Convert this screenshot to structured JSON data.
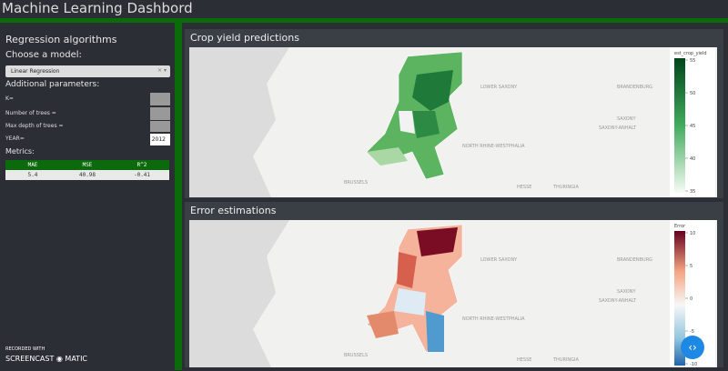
{
  "header": {
    "title": "Machine Learning Dashbord"
  },
  "sidebar": {
    "title": "Regression algorithms",
    "model_label": "Choose a model:",
    "model_value": "Linear Regression",
    "params_label": "Additional parameters:",
    "params": [
      {
        "label": "K="
      },
      {
        "label": "Number of trees ="
      },
      {
        "label": "Max depth of trees ="
      },
      {
        "label": "YEAR=",
        "value": 2012
      }
    ],
    "metrics_label": "Metrics:",
    "table": {
      "columns": [
        "MAE",
        "MSE",
        "R^2"
      ],
      "rows": [
        [
          5.4,
          40.98,
          -0.41
        ]
      ]
    }
  },
  "panels": [
    {
      "title": "Crop yield predictions",
      "colorbar": {
        "title": "est_crop_yield",
        "ticks": [
          55,
          50,
          45,
          40,
          35
        ]
      },
      "places": [
        "LOWER SAXONY",
        "BRANDENBURG",
        "SAXONY-ANHALT",
        "NORTH RHINE-WESTPHALIA",
        "HESSE",
        "THURINGIA",
        "SAXONY",
        "BRUSSELS"
      ]
    },
    {
      "title": "Error estimations",
      "colorbar": {
        "title": "Error",
        "ticks": [
          10,
          5,
          0,
          -5,
          -10
        ]
      },
      "places": [
        "LOWER SAXONY",
        "BRANDENBURG",
        "SAXONY-ANHALT",
        "NORTH RHINE-WESTPHALIA",
        "HESSE",
        "THURINGIA",
        "SAXONY",
        "BRUSSELS"
      ]
    }
  ],
  "watermark": {
    "line1": "RECORDED WITH",
    "brand1": "SCREENCAST",
    "brand2": "MATIC"
  }
}
